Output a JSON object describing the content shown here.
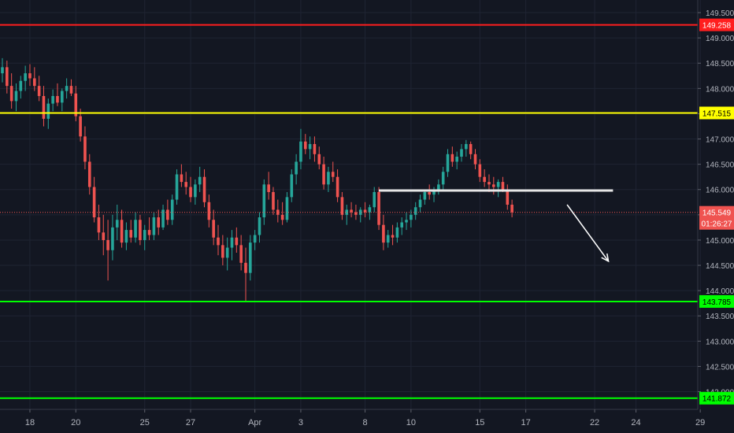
{
  "chart_data": {
    "type": "candlestick",
    "title": "",
    "xlabel": "",
    "ylabel": "",
    "ylim": [
      141.65,
      149.75
    ],
    "grid": true,
    "x_ticks": [
      {
        "label": "18",
        "index": 6
      },
      {
        "label": "20",
        "index": 16
      },
      {
        "label": "25",
        "index": 31
      },
      {
        "label": "27",
        "index": 41
      },
      {
        "label": "Apr",
        "index": 55
      },
      {
        "label": "3",
        "index": 65
      },
      {
        "label": "8",
        "index": 79
      },
      {
        "label": "10",
        "index": 89
      },
      {
        "label": "15",
        "index": 104
      },
      {
        "label": "17",
        "index": 114
      },
      {
        "label": "22",
        "index": 129
      },
      {
        "label": "24",
        "index": 138
      },
      {
        "label": "29",
        "index": 152
      }
    ],
    "y_ticks": [
      "149.500",
      "149.000",
      "148.500",
      "148.000",
      "147.500",
      "147.000",
      "146.500",
      "146.000",
      "145.500",
      "145.000",
      "144.500",
      "144.000",
      "143.500",
      "143.000",
      "142.500",
      "142.000"
    ],
    "levels": [
      {
        "price": 149.258,
        "label": "149.258",
        "color": "#ff1e1e"
      },
      {
        "price": 147.515,
        "label": "147.515",
        "color": "#ffff00"
      },
      {
        "price": 143.785,
        "label": "143.785",
        "color": "#00ff00"
      },
      {
        "price": 141.872,
        "label": "141.872",
        "color": "#00ff00"
      }
    ],
    "current_price": {
      "price": 145.549,
      "label": "145.549",
      "countdown": "01:26:27",
      "color": "#ef5350"
    },
    "neckline": {
      "start_index": 82,
      "end_index": 133,
      "price": 145.98,
      "color": "#e6e6e6"
    },
    "projection_arrow": {
      "start_index": 123,
      "start_price": 145.7,
      "end_index": 132,
      "end_price": 144.58,
      "color": "#ffffff"
    },
    "colors": {
      "up": "#26a69a",
      "down": "#ef5350",
      "background": "#131722",
      "grid": "#1f2433",
      "axis_text": "#b2b5be"
    },
    "ohlc": [
      [
        148.3,
        148.6,
        148.12,
        148.42
      ],
      [
        148.42,
        148.55,
        147.9,
        148.05
      ],
      [
        148.05,
        148.3,
        147.6,
        147.75
      ],
      [
        147.75,
        148.1,
        147.55,
        147.95
      ],
      [
        147.95,
        148.25,
        147.8,
        148.15
      ],
      [
        148.15,
        148.45,
        147.95,
        148.3
      ],
      [
        148.3,
        148.48,
        148.05,
        148.2
      ],
      [
        148.2,
        148.42,
        147.95,
        148.05
      ],
      [
        148.05,
        148.25,
        147.75,
        147.85
      ],
      [
        147.85,
        148.05,
        147.25,
        147.4
      ],
      [
        147.4,
        147.8,
        147.2,
        147.7
      ],
      [
        147.7,
        147.98,
        147.55,
        147.85
      ],
      [
        147.85,
        148.1,
        147.65,
        147.72
      ],
      [
        147.72,
        148.0,
        147.55,
        147.95
      ],
      [
        147.95,
        148.2,
        147.8,
        148.05
      ],
      [
        148.05,
        148.18,
        147.85,
        147.9
      ],
      [
        147.9,
        148.05,
        147.35,
        147.45
      ],
      [
        147.45,
        147.6,
        146.95,
        147.05
      ],
      [
        147.05,
        147.25,
        146.4,
        146.55
      ],
      [
        146.55,
        146.7,
        145.9,
        146.05
      ],
      [
        146.05,
        146.25,
        145.35,
        145.45
      ],
      [
        145.45,
        145.7,
        145.0,
        145.15
      ],
      [
        145.15,
        145.5,
        144.7,
        145.0
      ],
      [
        145.0,
        145.4,
        144.2,
        144.8
      ],
      [
        144.8,
        145.5,
        144.6,
        145.25
      ],
      [
        145.25,
        145.7,
        145.0,
        145.4
      ],
      [
        145.4,
        145.6,
        144.85,
        144.95
      ],
      [
        144.95,
        145.35,
        144.8,
        145.2
      ],
      [
        145.2,
        145.4,
        144.95,
        145.05
      ],
      [
        145.05,
        145.55,
        144.95,
        145.4
      ],
      [
        145.4,
        145.5,
        144.9,
        145.0
      ],
      [
        145.0,
        145.3,
        144.8,
        145.2
      ],
      [
        145.2,
        145.45,
        145.0,
        145.1
      ],
      [
        145.1,
        145.55,
        145.0,
        145.45
      ],
      [
        145.45,
        145.6,
        145.1,
        145.25
      ],
      [
        145.25,
        145.7,
        145.2,
        145.6
      ],
      [
        145.6,
        145.8,
        145.3,
        145.4
      ],
      [
        145.4,
        145.9,
        145.3,
        145.8
      ],
      [
        145.8,
        146.4,
        145.7,
        146.3
      ],
      [
        146.3,
        146.5,
        146.05,
        146.15
      ],
      [
        146.15,
        146.35,
        145.9,
        146.05
      ],
      [
        146.05,
        146.25,
        145.75,
        145.85
      ],
      [
        145.85,
        146.2,
        145.7,
        146.1
      ],
      [
        146.1,
        146.45,
        145.95,
        146.25
      ],
      [
        146.25,
        146.4,
        145.65,
        145.75
      ],
      [
        145.75,
        145.9,
        145.25,
        145.4
      ],
      [
        145.4,
        145.6,
        144.9,
        145.05
      ],
      [
        145.05,
        145.3,
        144.7,
        144.9
      ],
      [
        144.9,
        145.1,
        144.5,
        144.65
      ],
      [
        144.65,
        145.05,
        144.4,
        144.85
      ],
      [
        144.85,
        145.2,
        144.6,
        145.05
      ],
      [
        145.05,
        145.25,
        144.75,
        144.9
      ],
      [
        144.9,
        145.1,
        144.4,
        144.55
      ],
      [
        144.55,
        144.85,
        143.8,
        144.35
      ],
      [
        144.35,
        145.1,
        144.2,
        144.95
      ],
      [
        144.95,
        145.2,
        144.8,
        145.1
      ],
      [
        145.1,
        145.55,
        144.95,
        145.45
      ],
      [
        145.45,
        146.2,
        145.3,
        146.1
      ],
      [
        146.1,
        146.35,
        145.8,
        145.95
      ],
      [
        145.95,
        146.05,
        145.5,
        145.6
      ],
      [
        145.6,
        145.8,
        145.35,
        145.5
      ],
      [
        145.5,
        145.75,
        145.3,
        145.4
      ],
      [
        145.4,
        145.95,
        145.35,
        145.85
      ],
      [
        145.85,
        146.4,
        145.75,
        146.3
      ],
      [
        146.3,
        146.7,
        146.1,
        146.55
      ],
      [
        146.55,
        147.2,
        146.4,
        146.95
      ],
      [
        146.95,
        147.1,
        146.7,
        146.8
      ],
      [
        146.8,
        147.05,
        146.6,
        146.9
      ],
      [
        146.9,
        147.05,
        146.55,
        146.7
      ],
      [
        146.7,
        146.85,
        146.4,
        146.5
      ],
      [
        146.5,
        146.65,
        146.0,
        146.1
      ],
      [
        146.1,
        146.45,
        145.95,
        146.35
      ],
      [
        146.35,
        146.55,
        146.15,
        146.25
      ],
      [
        146.25,
        146.4,
        145.75,
        145.85
      ],
      [
        145.85,
        145.95,
        145.4,
        145.5
      ],
      [
        145.5,
        145.7,
        145.3,
        145.6
      ],
      [
        145.6,
        145.75,
        145.45,
        145.55
      ],
      [
        145.55,
        145.7,
        145.4,
        145.5
      ],
      [
        145.5,
        145.65,
        145.35,
        145.6
      ],
      [
        145.6,
        145.75,
        145.45,
        145.55
      ],
      [
        145.55,
        145.7,
        145.4,
        145.65
      ],
      [
        145.65,
        146.05,
        145.55,
        145.95
      ],
      [
        145.95,
        146.05,
        145.2,
        145.3
      ],
      [
        145.3,
        145.5,
        144.8,
        144.95
      ],
      [
        144.95,
        145.2,
        144.85,
        145.1
      ],
      [
        145.1,
        145.3,
        144.9,
        145.05
      ],
      [
        145.05,
        145.35,
        144.95,
        145.25
      ],
      [
        145.25,
        145.45,
        145.1,
        145.35
      ],
      [
        145.35,
        145.55,
        145.2,
        145.4
      ],
      [
        145.4,
        145.6,
        145.25,
        145.5
      ],
      [
        145.5,
        145.75,
        145.4,
        145.65
      ],
      [
        145.65,
        145.9,
        145.55,
        145.8
      ],
      [
        145.8,
        146.0,
        145.7,
        145.95
      ],
      [
        145.95,
        146.1,
        145.8,
        145.9
      ],
      [
        145.9,
        146.05,
        145.75,
        145.98
      ],
      [
        145.98,
        146.2,
        145.9,
        146.1
      ],
      [
        146.1,
        146.45,
        146.0,
        146.35
      ],
      [
        146.35,
        146.8,
        146.25,
        146.7
      ],
      [
        146.7,
        146.85,
        146.45,
        146.55
      ],
      [
        146.55,
        146.75,
        146.4,
        146.65
      ],
      [
        146.65,
        146.9,
        146.55,
        146.8
      ],
      [
        146.8,
        146.98,
        146.65,
        146.9
      ],
      [
        146.9,
        146.95,
        146.6,
        146.7
      ],
      [
        146.7,
        146.8,
        146.4,
        146.5
      ],
      [
        146.5,
        146.6,
        146.15,
        146.25
      ],
      [
        146.25,
        146.4,
        146.05,
        146.15
      ],
      [
        146.15,
        146.3,
        145.95,
        146.1
      ],
      [
        146.1,
        146.25,
        145.9,
        146.05
      ],
      [
        146.05,
        146.2,
        145.85,
        146.15
      ],
      [
        146.15,
        146.25,
        145.95,
        146.0
      ],
      [
        146.0,
        146.1,
        145.6,
        145.7
      ],
      [
        145.7,
        145.8,
        145.45,
        145.55
      ]
    ]
  }
}
